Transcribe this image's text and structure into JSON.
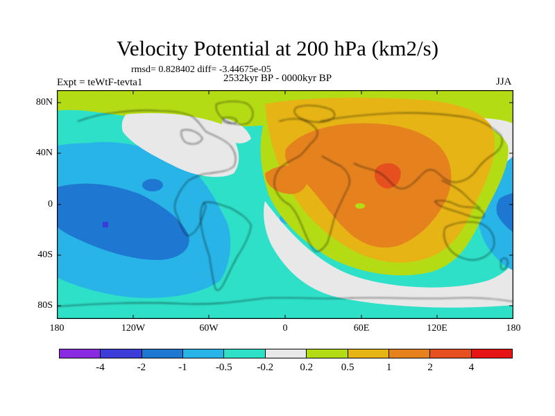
{
  "title": "Velocity Potential at 200 hPa (km2/s)",
  "stats": "rmsd= 0.828402 diff= -3.44675e-05",
  "period": "2532kyr BP - 0000kyr BP",
  "experiment": "Expt = teWtF-tevta1",
  "season": "JJA",
  "map": {
    "projection": "cylindrical equidistant",
    "lon_range": [
      -180,
      180
    ],
    "lat_range": [
      -90,
      90
    ],
    "y_ticks": [
      "80N",
      "40N",
      "0",
      "40S",
      "80S"
    ],
    "x_ticks": [
      "180",
      "120W",
      "60W",
      "0",
      "60E",
      "120E",
      "180"
    ]
  },
  "colorbar": {
    "colors": [
      "#8a2be2",
      "#3c3cd8",
      "#1e78d2",
      "#28b4e6",
      "#2ee0c8",
      "#e8e8e8",
      "#b4dc14",
      "#e6b414",
      "#e6821e",
      "#e6501e",
      "#e61414"
    ],
    "labels": [
      "-4",
      "-2",
      "-1",
      "-0.5",
      "-0.2",
      "0.2",
      "0.5",
      "1",
      "2",
      "4"
    ]
  }
}
